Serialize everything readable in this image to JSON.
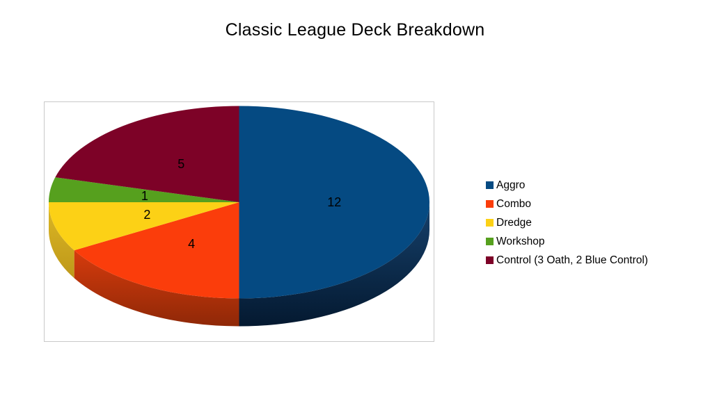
{
  "page": {
    "background_color": "#FFFFFF",
    "plot_border_color": "#C9C9C9"
  },
  "chart_data": {
    "type": "pie",
    "style": "3d-pie",
    "title": "Classic League Deck Breakdown",
    "start_angle_deg": 0,
    "direction": "clockwise",
    "total": 24,
    "categories": [
      "Aggro",
      "Combo",
      "Dredge",
      "Workshop",
      "Control (3 Oath, 2 Blue Control)"
    ],
    "values": [
      12,
      4,
      2,
      1,
      5
    ],
    "data_labels": [
      "12",
      "4",
      "2",
      "1",
      "5"
    ],
    "colors": [
      "#054A82",
      "#FB3D0B",
      "#FCD116",
      "#56A01E",
      "#7D0227"
    ],
    "side_gradients": [
      {
        "from": "#16416C",
        "to": "#041930"
      },
      {
        "from": "#D63B0D",
        "to": "#8F2807"
      },
      {
        "from": "#DDB824",
        "to": "#BE981A"
      },
      {
        "from": "#3E7415",
        "to": "#3E7415"
      },
      {
        "from": "#58021C",
        "to": "#58021C"
      }
    ],
    "legend_position": "right",
    "legend_items": [
      "Aggro",
      "Combo",
      "Dredge",
      "Workshop",
      "Control (3 Oath, 2 Blue Control)"
    ]
  }
}
